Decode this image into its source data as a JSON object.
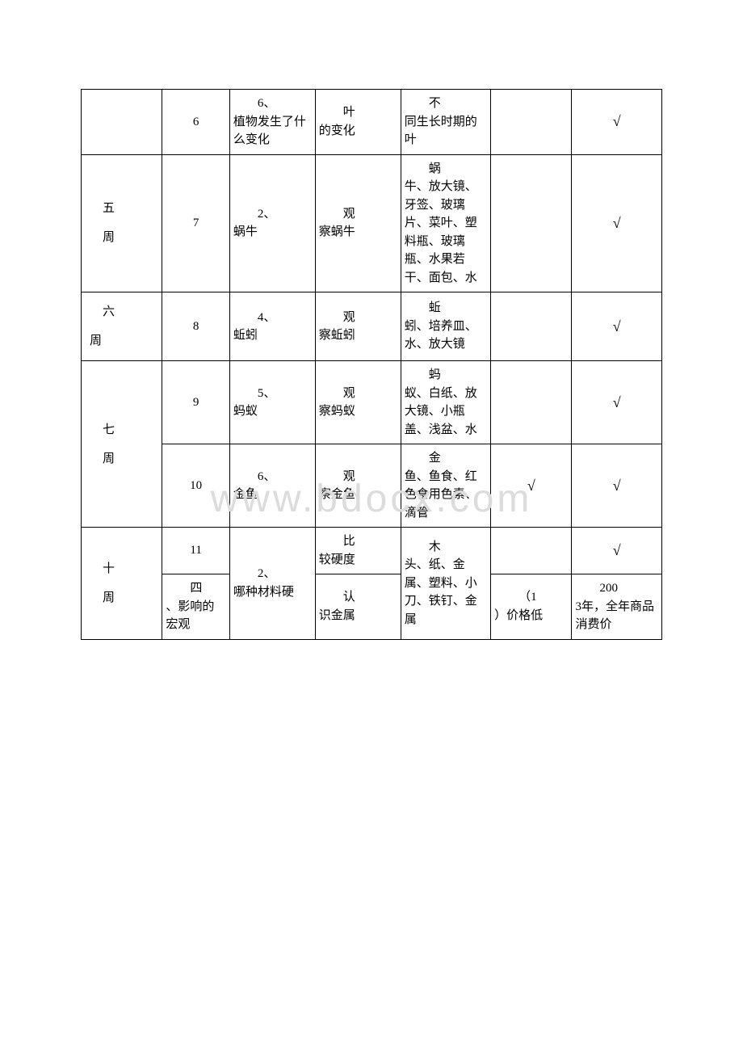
{
  "watermark": "www.bdocx.com",
  "check": "√",
  "rows": {
    "r1": {
      "num": "6",
      "c3a": "6、",
      "c3b": "植物发生了什么变化",
      "c4a": "叶",
      "c4b": "的变化",
      "c5a": "不",
      "c5b": "同生长时期的叶"
    },
    "r2": {
      "week1": "五",
      "week2": "周",
      "num": "7",
      "c3a": "2、",
      "c3b": "蜗牛",
      "c4a": "观",
      "c4b": "察蜗牛",
      "c5a": "蜗",
      "c5b": "牛、放大镜、牙签、玻璃片、菜叶、塑料瓶、玻璃瓶、水果若干、面包、水"
    },
    "r3": {
      "week1": "六",
      "week2": "周",
      "num": "8",
      "c3a": "4、",
      "c3b": "蚯蚓",
      "c4a": "观",
      "c4b": "察蚯蚓",
      "c5a": "蚯",
      "c5b": "蚓、培养皿、水、放大镜"
    },
    "r4": {
      "week1": "七",
      "week2": "周",
      "num": "9",
      "c3a": "5、",
      "c3b": "蚂蚁",
      "c4a": "观",
      "c4b": "察蚂蚁",
      "c5a": "蚂",
      "c5b": "蚁、白纸、放大镜、小瓶盖、浅盆、水"
    },
    "r5": {
      "num": "10",
      "c3a": "6、",
      "c3b": "金鱼",
      "c4a": "观",
      "c4b": "察金鱼",
      "c5a": "金",
      "c5b": "鱼、鱼食、红色食用色素、滴管"
    },
    "r6": {
      "week1": "十",
      "week2": "周",
      "num": "11",
      "c3a": "2、",
      "c3b": "哪种材料硬",
      "c4a": "比",
      "c4b": "较硬度",
      "c5a": "木",
      "c5b": "头、纸、金属、塑料、小刀、铁钉、金属"
    },
    "r7": {
      "c2a": "四",
      "c2b": "、影响的宏观",
      "c4a": "认",
      "c4b": "识金属",
      "c6a": "（1",
      "c6b": "）价格低",
      "c7a": "200",
      "c7b": "3年，全年商品消费价"
    }
  }
}
